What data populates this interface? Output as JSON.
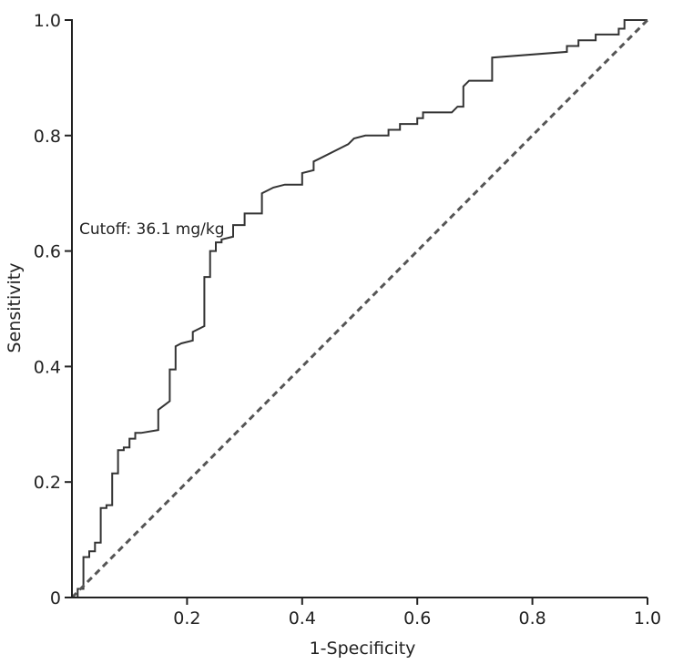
{
  "chart_data": {
    "type": "line",
    "title": "",
    "xlabel": "1-Specificity",
    "ylabel": "Sensitivity",
    "xlim": [
      0,
      1
    ],
    "ylim": [
      0,
      1
    ],
    "grid": false,
    "x_ticks": [
      {
        "value": 0.2,
        "label": "0.2"
      },
      {
        "value": 0.4,
        "label": "0.4"
      },
      {
        "value": 0.6,
        "label": "0.6"
      },
      {
        "value": 0.8,
        "label": "0.8"
      },
      {
        "value": 1.0,
        "label": "1.0"
      }
    ],
    "y_ticks": [
      {
        "value": 0,
        "label": "0"
      },
      {
        "value": 0.2,
        "label": "0.2"
      },
      {
        "value": 0.4,
        "label": "0.4"
      },
      {
        "value": 0.6,
        "label": "0.6"
      },
      {
        "value": 0.8,
        "label": "0.8"
      },
      {
        "value": 1.0,
        "label": "1.0"
      }
    ],
    "annotation": "Cutoff: 36.1 mg/kg",
    "series": [
      {
        "style": "solid",
        "color": "#333333",
        "points": [
          [
            0.0,
            0.0
          ],
          [
            0.01,
            0.0
          ],
          [
            0.01,
            0.015
          ],
          [
            0.02,
            0.015
          ],
          [
            0.02,
            0.07
          ],
          [
            0.03,
            0.07
          ],
          [
            0.03,
            0.08
          ],
          [
            0.04,
            0.08
          ],
          [
            0.04,
            0.095
          ],
          [
            0.05,
            0.095
          ],
          [
            0.05,
            0.155
          ],
          [
            0.06,
            0.155
          ],
          [
            0.06,
            0.16
          ],
          [
            0.07,
            0.16
          ],
          [
            0.07,
            0.215
          ],
          [
            0.08,
            0.215
          ],
          [
            0.08,
            0.255
          ],
          [
            0.09,
            0.255
          ],
          [
            0.09,
            0.26
          ],
          [
            0.1,
            0.26
          ],
          [
            0.1,
            0.275
          ],
          [
            0.11,
            0.275
          ],
          [
            0.11,
            0.285
          ],
          [
            0.12,
            0.285
          ],
          [
            0.15,
            0.29
          ],
          [
            0.15,
            0.325
          ],
          [
            0.17,
            0.34
          ],
          [
            0.17,
            0.395
          ],
          [
            0.18,
            0.395
          ],
          [
            0.18,
            0.435
          ],
          [
            0.19,
            0.44
          ],
          [
            0.21,
            0.445
          ],
          [
            0.21,
            0.46
          ],
          [
            0.23,
            0.47
          ],
          [
            0.23,
            0.555
          ],
          [
            0.24,
            0.555
          ],
          [
            0.24,
            0.6
          ],
          [
            0.25,
            0.6
          ],
          [
            0.25,
            0.615
          ],
          [
            0.26,
            0.615
          ],
          [
            0.26,
            0.62
          ],
          [
            0.28,
            0.625
          ],
          [
            0.28,
            0.645
          ],
          [
            0.3,
            0.645
          ],
          [
            0.3,
            0.665
          ],
          [
            0.33,
            0.665
          ],
          [
            0.33,
            0.7
          ],
          [
            0.35,
            0.71
          ],
          [
            0.37,
            0.715
          ],
          [
            0.4,
            0.715
          ],
          [
            0.4,
            0.735
          ],
          [
            0.42,
            0.74
          ],
          [
            0.42,
            0.755
          ],
          [
            0.43,
            0.76
          ],
          [
            0.47,
            0.78
          ],
          [
            0.48,
            0.785
          ],
          [
            0.49,
            0.795
          ],
          [
            0.51,
            0.8
          ],
          [
            0.55,
            0.8
          ],
          [
            0.55,
            0.81
          ],
          [
            0.57,
            0.81
          ],
          [
            0.57,
            0.82
          ],
          [
            0.6,
            0.82
          ],
          [
            0.6,
            0.83
          ],
          [
            0.61,
            0.83
          ],
          [
            0.61,
            0.84
          ],
          [
            0.66,
            0.84
          ],
          [
            0.67,
            0.85
          ],
          [
            0.68,
            0.85
          ],
          [
            0.68,
            0.885
          ],
          [
            0.69,
            0.895
          ],
          [
            0.73,
            0.895
          ],
          [
            0.73,
            0.935
          ],
          [
            0.86,
            0.945
          ],
          [
            0.86,
            0.955
          ],
          [
            0.88,
            0.955
          ],
          [
            0.88,
            0.965
          ],
          [
            0.91,
            0.965
          ],
          [
            0.91,
            0.975
          ],
          [
            0.95,
            0.975
          ],
          [
            0.95,
            0.985
          ],
          [
            0.96,
            0.985
          ],
          [
            0.96,
            1.0
          ],
          [
            0.99,
            1.0
          ],
          [
            1.0,
            1.0
          ]
        ]
      },
      {
        "style": "dashed",
        "color": "#555555",
        "points": [
          [
            0.0,
            0.0
          ],
          [
            1.0,
            1.0
          ]
        ]
      }
    ]
  }
}
